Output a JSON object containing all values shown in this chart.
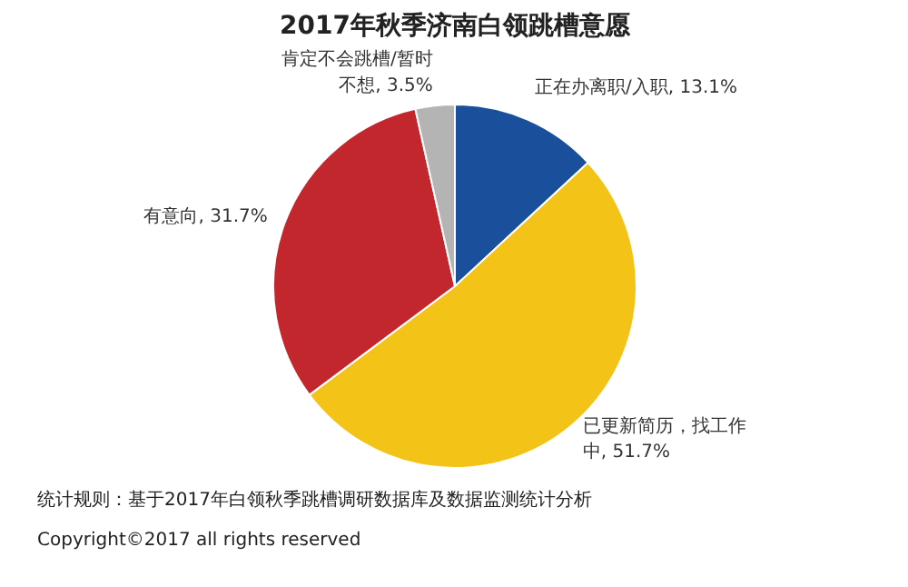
{
  "chart_data": {
    "type": "pie",
    "title": "2017年秋季济南白领跳槽意愿",
    "categories": [
      "正在办离职/入职",
      "已更新简历，找工作中",
      "有意向",
      "肯定不会跳槽/暂时不想"
    ],
    "values": [
      13.1,
      51.7,
      31.7,
      3.5
    ],
    "colors": [
      "#1a4f9c",
      "#f3c318",
      "#c2272d",
      "#b4b4b4"
    ],
    "value_labels": [
      "13.1%",
      "51.7%",
      "31.7%",
      "3.5%"
    ],
    "annotations": [
      "统计规则：基于2017年白领秋季跳槽调研数据库及数据监测统计分析",
      "Copyright©2017 all rights reserved"
    ]
  }
}
